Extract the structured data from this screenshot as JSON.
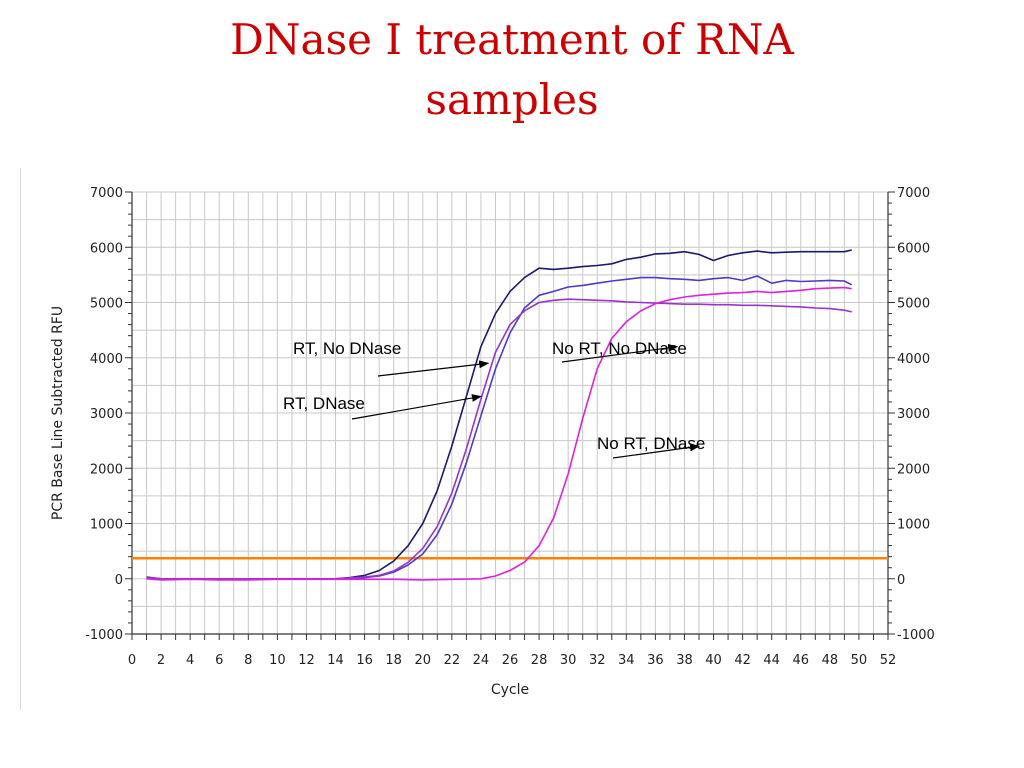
{
  "slide": {
    "title_line1": "DNase I treatment of RNA",
    "title_line2": "samples"
  },
  "chart_data": {
    "type": "line",
    "xlabel": "Cycle",
    "ylabel": "PCR Base Line Subtracted RFU",
    "xlim": [
      0,
      52
    ],
    "ylim": [
      -1000,
      7000
    ],
    "x_ticks": [
      0,
      2,
      4,
      6,
      8,
      10,
      12,
      14,
      16,
      18,
      20,
      22,
      24,
      26,
      28,
      30,
      32,
      34,
      36,
      38,
      40,
      42,
      44,
      46,
      48,
      50,
      52
    ],
    "y_ticks": [
      -1000,
      0,
      1000,
      2000,
      3000,
      4000,
      5000,
      6000,
      7000
    ],
    "grid": true,
    "threshold": {
      "value": 370,
      "color": "#ff8000"
    },
    "colors": {
      "navy": "#1a1a6e",
      "blue_violet": "#4b3acc",
      "purple": "#9933cc",
      "magenta": "#dd22dd",
      "threshold": "#ff8000",
      "title": "#cc0000"
    },
    "series": [
      {
        "color": "#1a1a6e",
        "x": [
          1,
          2,
          4,
          6,
          8,
          10,
          12,
          14,
          15,
          16,
          17,
          18,
          19,
          20,
          21,
          22,
          23,
          24,
          25,
          26,
          27,
          28,
          29,
          30,
          31,
          32,
          33,
          34,
          35,
          36,
          37,
          38,
          39,
          40,
          41,
          42,
          43,
          44,
          45,
          46,
          47,
          48,
          49,
          49.5
        ],
        "y": [
          30,
          0,
          0,
          0,
          0,
          0,
          0,
          0,
          20,
          60,
          150,
          320,
          600,
          1000,
          1600,
          2400,
          3300,
          4200,
          4800,
          5200,
          5450,
          5620,
          5600,
          5620,
          5650,
          5670,
          5700,
          5780,
          5820,
          5880,
          5890,
          5920,
          5870,
          5760,
          5850,
          5900,
          5930,
          5900,
          5910,
          5920,
          5920,
          5920,
          5920,
          5950
        ]
      },
      {
        "color": "#4b3acc",
        "x": [
          1,
          2,
          4,
          6,
          8,
          10,
          12,
          14,
          16,
          17,
          18,
          19,
          20,
          21,
          22,
          23,
          24,
          25,
          26,
          27,
          28,
          29,
          30,
          31,
          32,
          33,
          34,
          35,
          36,
          37,
          38,
          39,
          40,
          41,
          42,
          43,
          44,
          45,
          46,
          47,
          48,
          49,
          49.5
        ],
        "y": [
          20,
          0,
          0,
          0,
          0,
          0,
          0,
          0,
          20,
          50,
          120,
          250,
          450,
          800,
          1350,
          2100,
          2950,
          3800,
          4450,
          4900,
          5130,
          5200,
          5280,
          5310,
          5350,
          5390,
          5420,
          5450,
          5450,
          5430,
          5420,
          5400,
          5430,
          5450,
          5400,
          5480,
          5350,
          5400,
          5380,
          5390,
          5400,
          5390,
          5320
        ]
      },
      {
        "color": "#9933cc",
        "x": [
          1,
          2,
          4,
          6,
          8,
          10,
          12,
          14,
          16,
          17,
          18,
          19,
          20,
          21,
          22,
          23,
          24,
          25,
          26,
          27,
          28,
          29,
          30,
          31,
          32,
          33,
          34,
          35,
          36,
          37,
          38,
          39,
          40,
          41,
          42,
          43,
          44,
          45,
          46,
          47,
          48,
          49,
          49.5
        ],
        "y": [
          20,
          0,
          0,
          0,
          0,
          0,
          0,
          0,
          30,
          60,
          140,
          300,
          550,
          950,
          1550,
          2350,
          3250,
          4100,
          4600,
          4850,
          5000,
          5040,
          5060,
          5050,
          5040,
          5030,
          5010,
          5000,
          4990,
          4980,
          4970,
          4970,
          4960,
          4960,
          4950,
          4950,
          4940,
          4930,
          4920,
          4900,
          4890,
          4860,
          4830
        ]
      },
      {
        "color": "#dd22dd",
        "x": [
          1,
          2,
          4,
          6,
          8,
          10,
          12,
          14,
          16,
          18,
          20,
          22,
          24,
          25,
          26,
          27,
          28,
          29,
          30,
          31,
          32,
          33,
          34,
          35,
          36,
          37,
          38,
          39,
          40,
          41,
          42,
          43,
          44,
          45,
          46,
          47,
          48,
          49,
          49.5
        ],
        "y": [
          0,
          -20,
          -10,
          -20,
          -20,
          -10,
          -10,
          -10,
          -10,
          -10,
          -20,
          -10,
          0,
          50,
          150,
          300,
          600,
          1100,
          1900,
          2900,
          3800,
          4350,
          4650,
          4850,
          4980,
          5050,
          5100,
          5130,
          5150,
          5170,
          5180,
          5200,
          5180,
          5200,
          5220,
          5250,
          5260,
          5270,
          5250
        ]
      }
    ],
    "annotations": [
      {
        "text": "RT, No DNase",
        "x": 24.5,
        "y": 3900
      },
      {
        "text": "RT, DNase",
        "x": 24.0,
        "y": 3300
      },
      {
        "text": "No RT, No DNase",
        "x": 37.5,
        "y": 4200
      },
      {
        "text": "No RT, DNase",
        "x": 39.0,
        "y": 2400
      }
    ]
  }
}
